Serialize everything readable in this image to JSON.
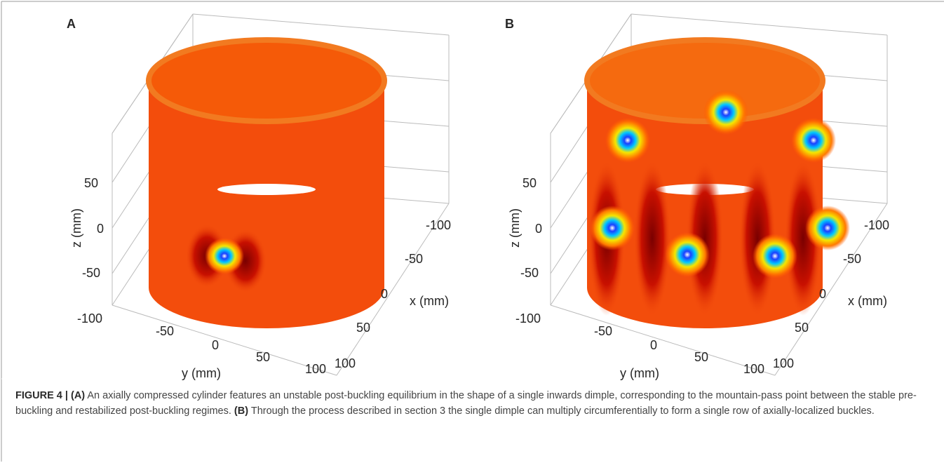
{
  "panels": [
    {
      "label": "A",
      "axes": {
        "x_label": "x (mm)",
        "y_label": "y (mm)",
        "z_label": "z (mm)",
        "x_ticks": [
          -100,
          -50,
          0,
          50,
          100
        ],
        "y_ticks": [
          -100,
          -50,
          0,
          50,
          100
        ],
        "z_ticks": [
          50,
          0,
          -50
        ]
      }
    },
    {
      "label": "B",
      "axes": {
        "x_label": "x (mm)",
        "y_label": "y (mm)",
        "z_label": "z (mm)",
        "x_ticks": [
          -100,
          -50,
          0,
          50,
          100
        ],
        "y_ticks": [
          -100,
          -50,
          0,
          50,
          100
        ],
        "z_ticks": [
          50,
          0,
          -50
        ]
      }
    }
  ],
  "caption": {
    "figure_label": "FIGURE 4 |",
    "parts": [
      {
        "tag": "(A)",
        "text": "An axially compressed cylinder features an unstable post-buckling equilibrium in the shape of a single inwards dimple, corresponding to the mountain-pass point between the stable pre-buckling and restabilized post-buckling regimes."
      },
      {
        "tag": "(B)",
        "text": "Through the process described in section 3 the single dimple can multiply circumferentially to form a single row of axially-localized buckles."
      }
    ]
  }
}
